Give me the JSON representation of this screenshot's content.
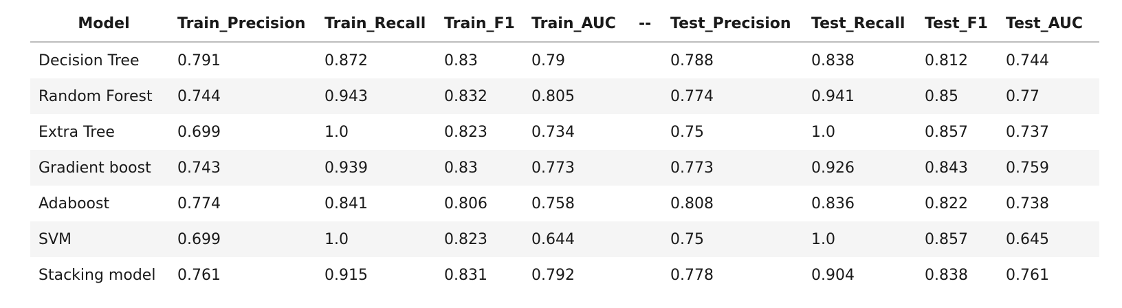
{
  "table": {
    "headers": [
      "Model",
      "Train_Precision",
      "Train_Recall",
      "Train_F1",
      "Train_AUC",
      "--",
      "Test_Precision",
      "Test_Recall",
      "Test_F1",
      "Test_AUC"
    ],
    "rows": [
      [
        "Decision Tree",
        "0.791",
        "0.872",
        "0.83",
        "0.79",
        "",
        "0.788",
        "0.838",
        "0.812",
        "0.744"
      ],
      [
        "Random Forest",
        "0.744",
        "0.943",
        "0.832",
        "0.805",
        "",
        "0.774",
        "0.941",
        "0.85",
        "0.77"
      ],
      [
        "Extra Tree",
        "0.699",
        "1.0",
        "0.823",
        "0.734",
        "",
        "0.75",
        "1.0",
        "0.857",
        "0.737"
      ],
      [
        "Gradient boost",
        "0.743",
        "0.939",
        "0.83",
        "0.773",
        "",
        "0.773",
        "0.926",
        "0.843",
        "0.759"
      ],
      [
        "Adaboost",
        "0.774",
        "0.841",
        "0.806",
        "0.758",
        "",
        "0.808",
        "0.836",
        "0.822",
        "0.738"
      ],
      [
        "SVM",
        "0.699",
        "1.0",
        "0.823",
        "0.644",
        "",
        "0.75",
        "1.0",
        "0.857",
        "0.645"
      ],
      [
        "Stacking model",
        "0.761",
        "0.915",
        "0.831",
        "0.792",
        "",
        "0.778",
        "0.904",
        "0.838",
        "0.761"
      ]
    ]
  }
}
